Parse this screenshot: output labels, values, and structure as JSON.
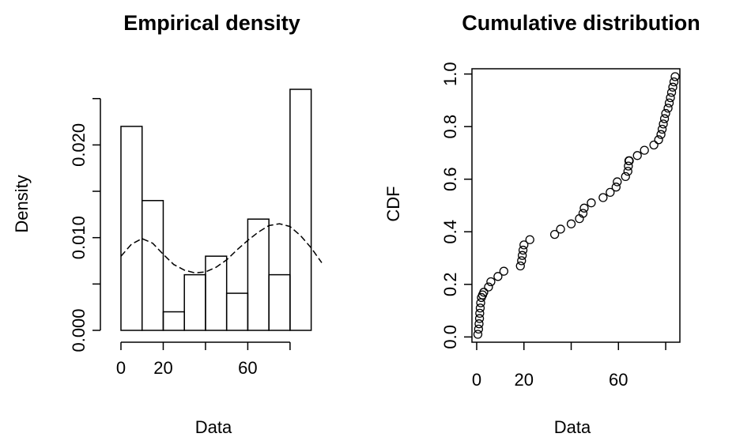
{
  "chart_data": [
    {
      "type": "bar",
      "subtype": "histogram",
      "title": "Empirical density",
      "xlabel": "Data",
      "ylabel": "Density",
      "bin_width": 10,
      "bins": [
        {
          "x0": 0,
          "x1": 10,
          "density": 0.022
        },
        {
          "x0": 10,
          "x1": 20,
          "density": 0.014
        },
        {
          "x0": 20,
          "x1": 30,
          "density": 0.002
        },
        {
          "x0": 30,
          "x1": 40,
          "density": 0.006
        },
        {
          "x0": 40,
          "x1": 50,
          "density": 0.008
        },
        {
          "x0": 50,
          "x1": 60,
          "density": 0.004
        },
        {
          "x0": 60,
          "x1": 70,
          "density": 0.012
        },
        {
          "x0": 70,
          "x1": 80,
          "density": 0.006
        },
        {
          "x0": 80,
          "x1": 90,
          "density": 0.026
        }
      ],
      "density_curve": {
        "style": "dashed",
        "x": [
          0,
          5,
          10,
          15,
          20,
          25,
          30,
          35,
          40,
          45,
          50,
          55,
          60,
          65,
          70,
          75,
          80,
          85,
          90,
          95
        ],
        "y": [
          0.008,
          0.0093,
          0.0099,
          0.0094,
          0.0082,
          0.0071,
          0.0065,
          0.0062,
          0.0063,
          0.0068,
          0.0076,
          0.0087,
          0.0097,
          0.0106,
          0.0113,
          0.0115,
          0.0112,
          0.0102,
          0.0089,
          0.0073
        ]
      },
      "xlim": [
        0,
        95
      ],
      "ylim": [
        0,
        0.026
      ],
      "xticks": [
        0,
        20,
        60
      ],
      "xticklabels": [
        "0",
        "20",
        "60"
      ],
      "xtick_marks": [
        0,
        20,
        40,
        60,
        80
      ],
      "yticks": [
        0.0,
        0.005,
        0.01,
        0.015,
        0.02,
        0.025
      ],
      "yticklabels": [
        "0.000",
        "0.010",
        "0.020"
      ],
      "ytick_labeled": [
        0.0,
        0.01,
        0.02
      ],
      "grid": false
    },
    {
      "type": "scatter",
      "title": "Cumulative distribution",
      "xlabel": "Data",
      "ylabel": "CDF",
      "x": [
        0.5,
        0.8,
        1.0,
        1.2,
        1.3,
        1.5,
        1.7,
        2.0,
        2.5,
        3.0,
        5.0,
        6.0,
        9.0,
        11.5,
        18.5,
        19.0,
        19.3,
        19.6,
        20.0,
        22.5,
        33.0,
        35.5,
        40.0,
        43.5,
        45.0,
        45.5,
        48.5,
        53.5,
        56.5,
        59.0,
        59.5,
        63.0,
        64.0,
        64.2,
        64.4,
        64.6,
        68.0,
        71.0,
        75.0,
        77.0,
        78.0,
        78.5,
        79.0,
        79.5,
        80.0,
        81.0,
        81.5,
        82.0,
        82.5,
        83.0,
        83.5,
        84.0
      ],
      "y": [
        0.01,
        0.03,
        0.05,
        0.07,
        0.09,
        0.11,
        0.13,
        0.15,
        0.16,
        0.17,
        0.19,
        0.21,
        0.23,
        0.25,
        0.27,
        0.29,
        0.31,
        0.33,
        0.35,
        0.37,
        0.39,
        0.41,
        0.43,
        0.45,
        0.47,
        0.49,
        0.51,
        0.53,
        0.55,
        0.57,
        0.59,
        0.61,
        0.63,
        0.65,
        0.67,
        0.67,
        0.69,
        0.71,
        0.73,
        0.75,
        0.77,
        0.79,
        0.81,
        0.83,
        0.85,
        0.87,
        0.89,
        0.91,
        0.93,
        0.95,
        0.97,
        0.99
      ],
      "xlim": [
        -2,
        86
      ],
      "ylim": [
        -0.02,
        1.02
      ],
      "xticks": [
        0,
        20,
        60
      ],
      "xticklabels": [
        "0",
        "20",
        "60"
      ],
      "xtick_marks": [
        0,
        20,
        40,
        60,
        80
      ],
      "yticks": [
        0.0,
        0.2,
        0.4,
        0.6,
        0.8,
        1.0
      ],
      "yticklabels": [
        "0.0",
        "0.2",
        "0.4",
        "0.6",
        "0.8",
        "1.0"
      ],
      "marker": "open-circle",
      "grid": false
    }
  ]
}
